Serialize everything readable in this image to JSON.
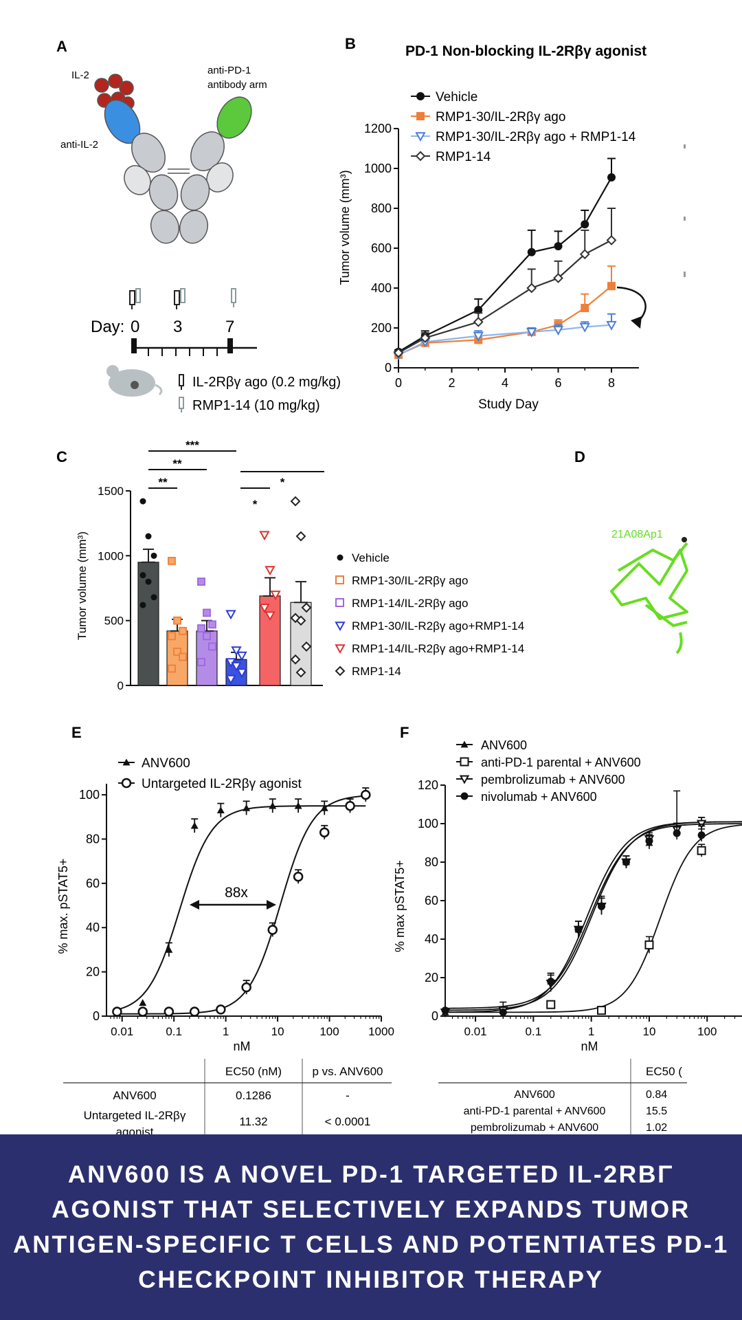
{
  "panel_letters": {
    "a": "A",
    "b": "B",
    "c": "C",
    "d": "D",
    "e": "E",
    "f": "F"
  },
  "panel_a": {
    "il2_label": "IL-2",
    "anti_il2_label": "anti-IL-2",
    "anti_pd1_label_line1": "anti-PD-1",
    "anti_pd1_label_line2": "antibody arm",
    "day_label": "Day:",
    "days": [
      "0",
      "3",
      "7"
    ],
    "legend_ago": "IL-2Rβγ ago (0.2 mg/kg)",
    "legend_rmp": "RMP1-14 (10 mg/kg)",
    "colors": {
      "il2": "#b3261e",
      "anti_il2": "#3b8fe0",
      "anti_pd1": "#5cc83c",
      "fc": "#c8ccd0"
    }
  },
  "chart_data": [
    {
      "panel": "B",
      "type": "line",
      "title": "PD-1 Non-blocking IL-2Rβγ agonist",
      "xlabel": "Study Day",
      "ylabel": "Tumor volume (mm³)",
      "xlim": [
        0,
        9
      ],
      "ylim": [
        0,
        1200
      ],
      "xticks": [
        "0",
        "2",
        "4",
        "6",
        "8"
      ],
      "yticks": [
        "0",
        "200",
        "400",
        "600",
        "800",
        "1000",
        "1200"
      ],
      "legend_position": "top-left",
      "series": [
        {
          "name": "Vehicle",
          "color": "#111111",
          "marker": "circle",
          "x": [
            0,
            1,
            3,
            5,
            6,
            7,
            8
          ],
          "y": [
            80,
            160,
            290,
            580,
            610,
            720,
            955
          ],
          "err": [
            10,
            25,
            55,
            110,
            75,
            70,
            95
          ]
        },
        {
          "name": "RMP1-30/IL-2Rβγ ago",
          "color": "#ee7f3a",
          "marker": "square",
          "x": [
            0,
            1,
            3,
            5,
            6,
            7,
            8
          ],
          "y": [
            65,
            125,
            140,
            180,
            215,
            300,
            410
          ],
          "err": [
            10,
            15,
            20,
            20,
            25,
            70,
            100
          ]
        },
        {
          "name": "RMP1-30/IL-2Rβγ ago + RMP1-14",
          "color": "#4a7fd8",
          "marker": "triangle-down",
          "x": [
            0,
            1,
            3,
            5,
            6,
            7,
            8
          ],
          "y": [
            65,
            130,
            160,
            180,
            190,
            205,
            215
          ],
          "err": [
            8,
            15,
            25,
            20,
            25,
            25,
            55
          ]
        },
        {
          "name": "RMP1-14",
          "color": "#333333",
          "marker": "diamond",
          "x": [
            0,
            1,
            3,
            5,
            6,
            7,
            8
          ],
          "y": [
            75,
            150,
            230,
            400,
            450,
            570,
            640
          ],
          "err": [
            10,
            25,
            45,
            95,
            85,
            120,
            160
          ]
        }
      ]
    },
    {
      "panel": "C",
      "type": "bar",
      "ylabel": "Tumor volume (mm³)",
      "ylim": [
        0,
        1500
      ],
      "yticks": [
        "0",
        "500",
        "1000",
        "1500"
      ],
      "legend_position": "right",
      "significance": [
        "***",
        "**",
        "**",
        "*",
        "*"
      ],
      "series": [
        {
          "name": "Vehicle",
          "mean": 950,
          "sem": 100,
          "fill": "#4a5050",
          "pointColor": "#111111",
          "marker": "circle",
          "points": [
            1420,
            1150,
            1000,
            850,
            800,
            680,
            620
          ]
        },
        {
          "name": "RMP1-30/IL-2Rβγ ago",
          "mean": 420,
          "sem": 90,
          "fill": "#f8a766",
          "pointColor": "#ee7f3a",
          "marker": "square",
          "points": [
            960,
            500,
            420,
            380,
            260,
            220,
            130
          ]
        },
        {
          "name": "RMP1-14/IL-2Rβγ ago",
          "mean": 420,
          "sem": 80,
          "fill": "#b48ce8",
          "pointColor": "#a064e0",
          "marker": "square",
          "points": [
            800,
            560,
            470,
            440,
            380,
            300,
            180
          ]
        },
        {
          "name": "RMP1-30/IL-R2βγ ago+RMP1-14",
          "mean": 200,
          "sem": 55,
          "fill": "#3c52e0",
          "pointColor": "#2b3cd8",
          "marker": "triangle-down",
          "points": [
            550,
            270,
            230,
            180,
            150,
            100,
            50
          ]
        },
        {
          "name": "RMP1-14/IL-R2βγ ago+RMP1-14",
          "mean": 690,
          "sem": 140,
          "fill": "#f46464",
          "pointColor": "#e03030",
          "marker": "triangle-down",
          "points": [
            1160,
            890,
            700,
            600,
            540
          ]
        },
        {
          "name": "RMP1-14",
          "mean": 640,
          "sem": 160,
          "fill": "#dcdcdc",
          "pointColor": "#222222",
          "marker": "diamond",
          "points": [
            1420,
            1150,
            600,
            520,
            500,
            300,
            200,
            100
          ]
        }
      ]
    },
    {
      "panel": "E",
      "type": "line",
      "xlabel": "nM",
      "ylabel": "% max. pSTAT5+",
      "xscale": "log",
      "xlim": [
        0.005,
        1000
      ],
      "ylim": [
        0,
        105
      ],
      "xticks": [
        "0.01",
        "0.1",
        "1",
        "10",
        "100",
        "1000"
      ],
      "yticks": [
        "0",
        "20",
        "40",
        "60",
        "80",
        "100"
      ],
      "annotation": "88x",
      "legend_position": "top-left",
      "series": [
        {
          "name": "ANV600",
          "marker": "triangle",
          "ec50": 0.1286,
          "top": 95,
          "x": [
            0.008,
            0.025,
            0.08,
            0.25,
            0.8,
            2.5,
            8,
            25,
            80,
            250
          ],
          "y": [
            2,
            6,
            30,
            86,
            93,
            94,
            95,
            95,
            94,
            95
          ]
        },
        {
          "name": "Untargeted IL-2Rβγ agonist",
          "marker": "open-circle",
          "ec50": 11.32,
          "top": 100,
          "x": [
            0.008,
            0.025,
            0.08,
            0.25,
            0.8,
            2.5,
            8,
            25,
            80,
            250,
            500
          ],
          "y": [
            2,
            2,
            2,
            2,
            3,
            13,
            39,
            63,
            83,
            95,
            100
          ]
        }
      ]
    },
    {
      "panel": "F",
      "type": "line",
      "xlabel": "nM",
      "ylabel": "% max pSTAT5+",
      "xscale": "log",
      "ylim": [
        0,
        120
      ],
      "xticks": [
        "0.01",
        "0.1",
        "1",
        "10",
        "100"
      ],
      "yticks": [
        "0",
        "20",
        "40",
        "60",
        "80",
        "100",
        "120"
      ],
      "legend_position": "top-left",
      "series": [
        {
          "name": "ANV600",
          "marker": "triangle",
          "ec50": 0.84,
          "x": [
            0.003,
            0.03,
            0.2,
            0.6,
            1.5,
            4,
            10,
            30,
            80
          ],
          "y": [
            2,
            3,
            18,
            45,
            58,
            80,
            90,
            97,
            100
          ]
        },
        {
          "name": "anti-PD-1 parental + ANV600",
          "marker": "open-square",
          "ec50": 15.5,
          "x": [
            0.2,
            1.5,
            10,
            80
          ],
          "y": [
            6,
            3,
            37,
            86
          ]
        },
        {
          "name": "pembrolizumab + ANV600",
          "marker": "open-triangle-down",
          "ec50": 1.02,
          "x": [
            0.003,
            0.03,
            0.2,
            0.6,
            1.5,
            4,
            10,
            30,
            80
          ],
          "y": [
            2,
            3,
            17,
            45,
            57,
            80,
            92,
            97,
            100
          ]
        },
        {
          "name": "nivolumab + ANV600",
          "marker": "circle",
          "x": [
            0.003,
            0.03,
            0.2,
            0.6,
            1.5,
            4,
            10,
            30,
            80
          ],
          "y": [
            3,
            2,
            18,
            45,
            57,
            80,
            91,
            95,
            94
          ]
        }
      ]
    }
  ],
  "panel_d": {
    "label": "21A08Ap1",
    "color": "#66dd22"
  },
  "table_e": {
    "headers": [
      "EC50 (nM)",
      "p vs. ANV600"
    ],
    "rows": [
      {
        "name": "ANV600",
        "ec50": "0.1286",
        "p": "-"
      },
      {
        "name": "Untargeted IL-2Rβγ",
        "name2": "agonist",
        "ec50": "11.32",
        "p": "< 0.0001"
      }
    ]
  },
  "table_f": {
    "headers": [
      "EC50 ("
    ],
    "rows": [
      {
        "name": "ANV600",
        "ec50": "0.84"
      },
      {
        "name": "anti-PD-1 parental + ANV600",
        "ec50": "15.5"
      },
      {
        "name": "pembrolizumab + ANV600",
        "ec50": "1.02"
      }
    ]
  },
  "banner": {
    "title": "ANV600 IS A NOVEL PD-1 TARGETED IL-2RΒΓ AGONIST THAT SELECTIVELY EXPANDS TUMOR ANTIGEN-SPECIFIC T CELLS AND POTENTIATES PD-1 CHECKPOINT INHIBITOR THERAPY"
  }
}
